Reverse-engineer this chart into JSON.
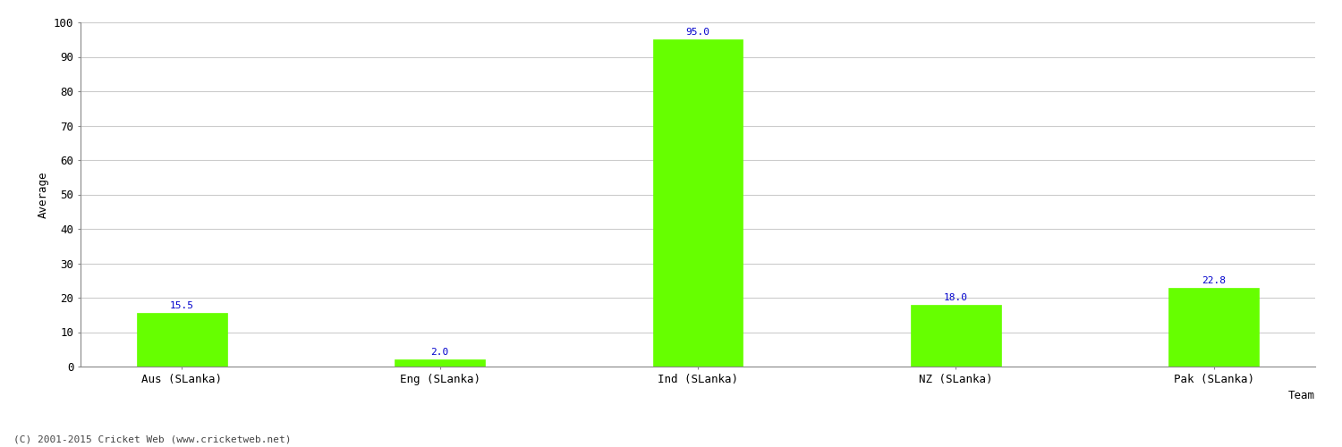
{
  "categories": [
    "Aus (SLanka)",
    "Eng (SLanka)",
    "Ind (SLanka)",
    "NZ (SLanka)",
    "Pak (SLanka)"
  ],
  "values": [
    15.5,
    2.0,
    95.0,
    18.0,
    22.8
  ],
  "bar_color": "#66ff00",
  "bar_edge_color": "#66ff00",
  "value_label_color": "#0000cc",
  "xlabel": "Team",
  "ylabel": "Average",
  "ylim": [
    0,
    100
  ],
  "yticks": [
    0,
    10,
    20,
    30,
    40,
    50,
    60,
    70,
    80,
    90,
    100
  ],
  "grid_color": "#cccccc",
  "background_color": "#ffffff",
  "axes_background_color": "#ffffff",
  "footer_text": "(C) 2001-2015 Cricket Web (www.cricketweb.net)",
  "footer_color": "#444444",
  "label_fontsize": 9,
  "tick_fontsize": 9,
  "footer_fontsize": 8,
  "value_fontsize": 8,
  "bar_width": 0.35
}
